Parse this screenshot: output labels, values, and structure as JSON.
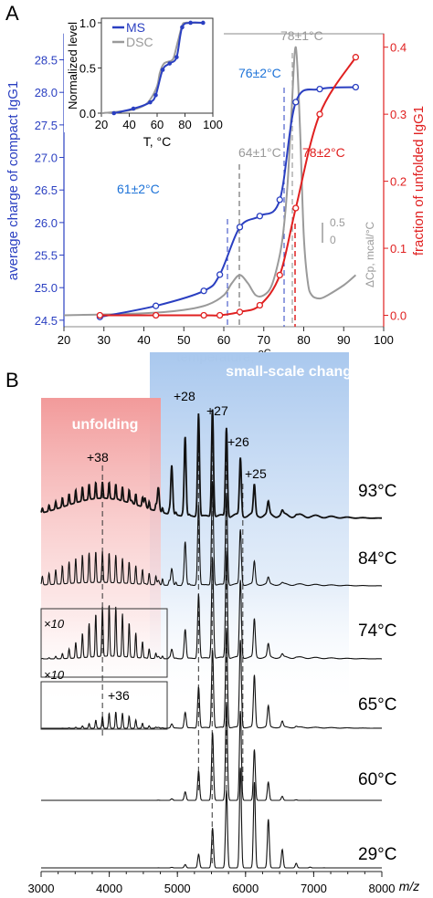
{
  "panel_a": {
    "panel_letter": "A",
    "title": "",
    "x_axis": {
      "label": "temperature, ",
      "label_unit": "oC",
      "ticks": [
        20,
        30,
        40,
        50,
        60,
        70,
        80,
        90,
        100
      ],
      "range": [
        20,
        100
      ]
    },
    "y_left": {
      "label": "average charge of compact IgG1",
      "range": [
        24.4,
        28.9
      ],
      "ticks": [
        "24.5",
        "25.0",
        "25.5",
        "26.0",
        "26.5",
        "27.0",
        "27.5",
        "28.0",
        "28.5"
      ],
      "color": "#2a3fc1"
    },
    "y_right": {
      "label": "fraction of unfolded IgG1",
      "range": [
        -0.017,
        0.42
      ],
      "ticks": [
        "0.0",
        "0.1",
        "0.2",
        "0.3",
        "0.4"
      ],
      "color": "#e02020"
    },
    "annotations": {
      "ms_mid1": "61±2°C",
      "ms_mid2": "76±2°C",
      "dsc_mid1": "64±1°C",
      "dsc_mid2": "78±1°C",
      "unf_mid": "78±2°C"
    },
    "dsc_scale": {
      "top": "0.5",
      "bottom": "0",
      "label": "ΔCp, mcal/°C"
    },
    "inset": {
      "y_label": "Normalized level",
      "x_label": "T, °C",
      "x_ticks": [
        20,
        40,
        60,
        80,
        100
      ],
      "y_ticks": [
        "0.0",
        "0.5",
        "1.0"
      ],
      "legend": [
        "MS",
        "DSC"
      ]
    }
  },
  "panel_b": {
    "panel_letter": "B",
    "x_axis": {
      "label": "m/z",
      "ticks": [
        3000,
        4000,
        5000,
        6000,
        7000,
        8000
      ],
      "range": [
        3000,
        8000
      ]
    },
    "region_labels": {
      "unfolding": "unfolding",
      "small_scale": "small-scale changes"
    },
    "charge_labels": [
      "+38",
      "+28",
      "+27",
      "+26",
      "+25",
      "+36"
    ],
    "magnification": "×10",
    "temperatures": [
      "93°C",
      "84°C",
      "74°C",
      "65°C",
      "60°C",
      "29°C"
    ]
  },
  "colors": {
    "ms": "#2a3fc1",
    "dsc": "#9a9a9a",
    "unfolded": "#e02020",
    "unfold_band": "#f4a6a6",
    "small_band": "#a9c8ee",
    "text_blue": "#1e73d8"
  },
  "chart_data": [
    {
      "type": "scatter",
      "title": "",
      "xlabel": "temperature, oC",
      "ylabel": "average charge of compact IgG1",
      "y2label": "fraction of unfolded IgG1",
      "xlim": [
        20,
        100
      ],
      "ylim": [
        24.4,
        28.9
      ],
      "y2lim": [
        -0.017,
        0.42
      ],
      "series": [
        {
          "name": "average charge of compact IgG1",
          "axis": "left",
          "x": [
            29,
            43,
            55,
            59,
            64,
            69,
            74,
            78,
            84,
            93
          ],
          "y": [
            24.55,
            24.72,
            24.95,
            25.2,
            25.93,
            26.1,
            26.35,
            27.85,
            28.05,
            28.08
          ]
        },
        {
          "name": "fraction of unfolded IgG1",
          "axis": "right",
          "x": [
            29,
            43,
            55,
            59,
            64,
            69,
            74,
            78,
            84,
            93
          ],
          "y": [
            0.0,
            0.0,
            0.0,
            0.0,
            0.005,
            0.015,
            0.06,
            0.16,
            0.3,
            0.385
          ]
        },
        {
          "name": "DSC",
          "axis": "right",
          "x": [
            20,
            40,
            50,
            56,
            60,
            62,
            64,
            66,
            68,
            70,
            72,
            74,
            75,
            76,
            77,
            78,
            79,
            80,
            81,
            82,
            84,
            86,
            90,
            93
          ],
          "y": [
            0.0,
            0.003,
            0.008,
            0.016,
            0.03,
            0.048,
            0.06,
            0.048,
            0.03,
            0.03,
            0.045,
            0.09,
            0.13,
            0.2,
            0.31,
            0.4,
            0.29,
            0.12,
            0.05,
            0.03,
            0.025,
            0.03,
            0.045,
            0.06
          ]
        }
      ],
      "inset": {
        "type": "line",
        "xlabel": "T, °C",
        "ylabel": "Normalized level",
        "xlim": [
          20,
          100
        ],
        "ylim": [
          0,
          1.05
        ],
        "series": [
          {
            "name": "MS",
            "x": [
              29,
              43,
              55,
              59,
              64,
              69,
              74,
              78,
              84,
              93
            ],
            "y": [
              0.0,
              0.05,
              0.12,
              0.2,
              0.48,
              0.55,
              0.62,
              0.95,
              1.0,
              1.0
            ]
          },
          {
            "name": "DSC",
            "x": [
              20,
              40,
              50,
              55,
              60,
              62,
              65,
              70,
              72,
              75,
              78,
              80,
              85,
              93
            ],
            "y": [
              0.0,
              0.03,
              0.08,
              0.15,
              0.3,
              0.45,
              0.55,
              0.58,
              0.62,
              0.8,
              0.97,
              1.0,
              1.0,
              1.0
            ]
          }
        ]
      }
    },
    {
      "type": "line",
      "title": "",
      "xlabel": "m/z",
      "xlim": [
        3000,
        8000
      ],
      "series": [
        {
          "name": "93°C"
        },
        {
          "name": "84°C"
        },
        {
          "name": "74°C"
        },
        {
          "name": "65°C"
        },
        {
          "name": "60°C"
        },
        {
          "name": "29°C"
        }
      ],
      "charge_state_peaks_mz": {
        "+38": 3900,
        "+36": 4120,
        "+28": 5310,
        "+27": 5510,
        "+26": 5720,
        "+25": 5960
      }
    }
  ]
}
